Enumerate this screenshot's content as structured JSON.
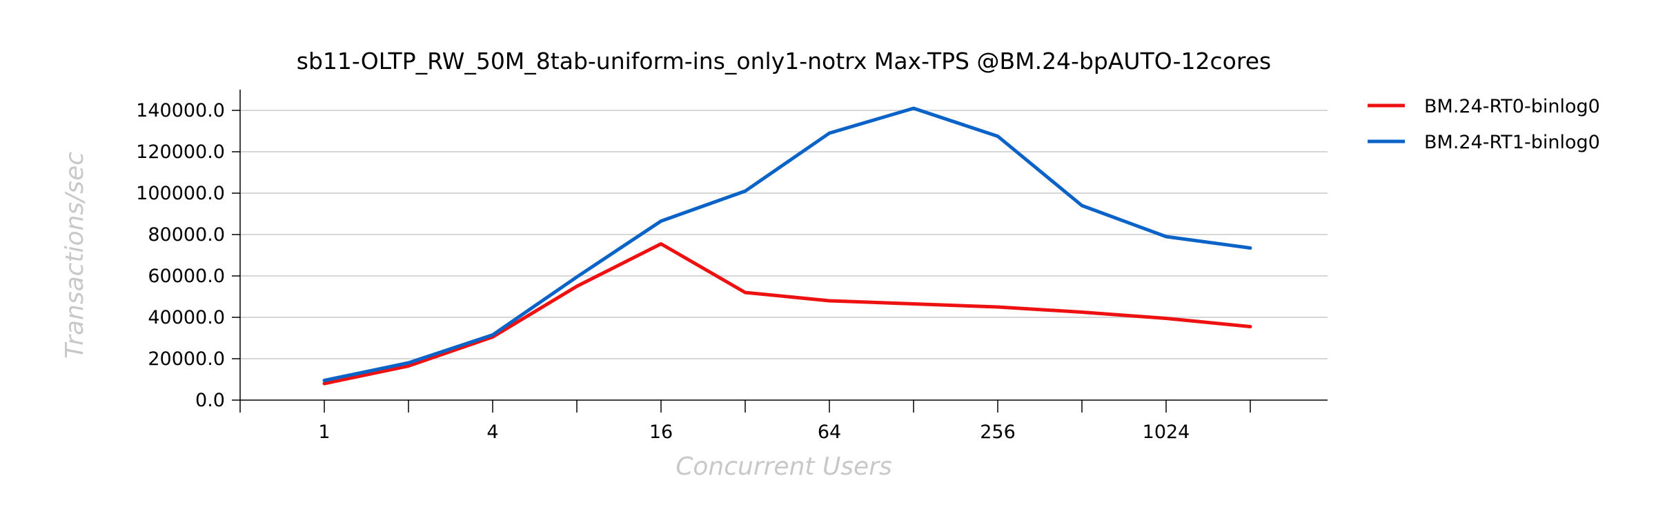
{
  "chart_data": {
    "type": "line",
    "title": "sb11-OLTP_RW_50M_8tab-uniform-ins_only1-notrx Max-TPS @BM.24-bpAUTO-12cores",
    "xlabel": "Concurrent Users",
    "ylabel": "Transactions/sec",
    "x_scale": "log2",
    "x": [
      1,
      2,
      4,
      8,
      16,
      32,
      64,
      128,
      256,
      512,
      1024,
      2048
    ],
    "x_tick_labels": [
      "1",
      "4",
      "16",
      "64",
      "256",
      "1024"
    ],
    "x_tick_values": [
      1,
      4,
      16,
      64,
      256,
      1024
    ],
    "y_tick_labels": [
      "0.0",
      "20000.0",
      "40000.0",
      "60000.0",
      "80000.0",
      "100000.0",
      "120000.0",
      "140000.0"
    ],
    "y_tick_values": [
      0,
      20000,
      40000,
      60000,
      80000,
      100000,
      120000,
      140000
    ],
    "ylim": [
      0,
      150000
    ],
    "xlim": [
      1,
      2048
    ],
    "grid": "horizontal",
    "legend_position": "right",
    "series": [
      {
        "name": "BM.24-RT0-binlog0",
        "color": "#ee1111",
        "values": [
          8000,
          16500,
          30500,
          55000,
          75500,
          52000,
          48000,
          46500,
          45000,
          42500,
          39500,
          35500
        ]
      },
      {
        "name": "BM.24-RT1-binlog0",
        "color": "#0b63c8",
        "values": [
          9500,
          18000,
          31500,
          59500,
          86500,
          101000,
          129000,
          141000,
          127500,
          94000,
          79000,
          73500
        ]
      }
    ]
  }
}
